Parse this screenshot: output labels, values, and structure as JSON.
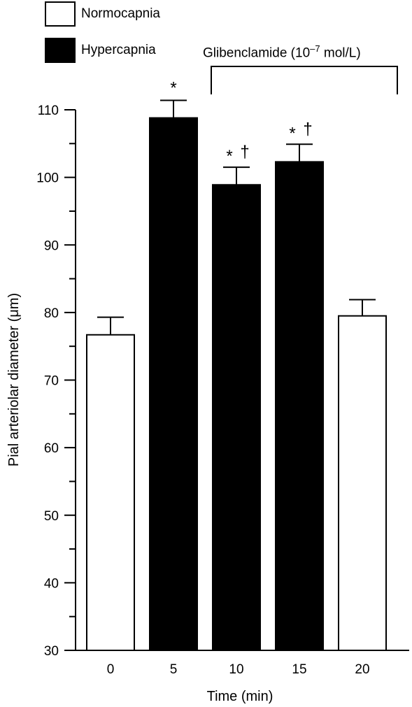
{
  "legend": [
    {
      "label": "Normocapnia",
      "fill": "#ffffff"
    },
    {
      "label": "Hypercapnia",
      "fill": "#000000"
    }
  ],
  "annotation": {
    "prefix": "Glibenclamide (10",
    "exp": "–7",
    "suffix": " mol/L)"
  },
  "chart_data": {
    "type": "bar",
    "categories": [
      "0",
      "5",
      "10",
      "15",
      "20"
    ],
    "values": [
      76.7,
      108.8,
      98.9,
      102.3,
      79.5
    ],
    "errors": [
      2.6,
      2.6,
      2.6,
      2.6,
      2.4
    ],
    "condition": [
      "Normocapnia",
      "Hypercapnia",
      "Hypercapnia",
      "Hypercapnia",
      "Normocapnia"
    ],
    "fills": [
      "#ffffff",
      "#000000",
      "#000000",
      "#000000",
      "#ffffff"
    ],
    "markers": [
      "",
      "*",
      "*†",
      "*†",
      ""
    ],
    "xlabel": "Time (min)",
    "ylabel": "Pial arteriolar diameter (μm)",
    "ylim": [
      30,
      110
    ],
    "yticks": [
      30,
      40,
      50,
      60,
      70,
      80,
      90,
      100,
      110
    ],
    "ytick_minor_step": 5
  }
}
